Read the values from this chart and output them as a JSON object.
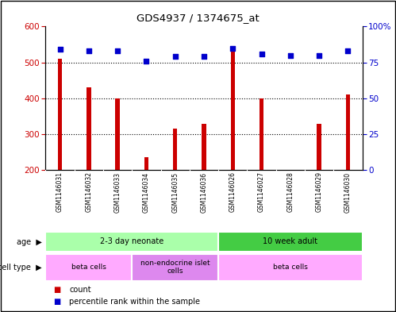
{
  "title": "GDS4937 / 1374675_at",
  "samples": [
    "GSM1146031",
    "GSM1146032",
    "GSM1146033",
    "GSM1146034",
    "GSM1146035",
    "GSM1146036",
    "GSM1146026",
    "GSM1146027",
    "GSM1146028",
    "GSM1146029",
    "GSM1146030"
  ],
  "counts": [
    510,
    430,
    400,
    235,
    315,
    328,
    530,
    400,
    200,
    328,
    410
  ],
  "percentiles": [
    84,
    83,
    83,
    76,
    79,
    79,
    85,
    81,
    80,
    80,
    83
  ],
  "ylim_left": [
    200,
    600
  ],
  "ylim_right": [
    0,
    100
  ],
  "yticks_left": [
    200,
    300,
    400,
    500,
    600
  ],
  "yticks_right": [
    0,
    25,
    50,
    75,
    100
  ],
  "bar_color": "#cc0000",
  "scatter_color": "#0000cc",
  "age_groups": [
    {
      "label": "2-3 day neonate",
      "start": 0,
      "end": 6,
      "color": "#aaffaa"
    },
    {
      "label": "10 week adult",
      "start": 6,
      "end": 11,
      "color": "#44cc44"
    }
  ],
  "cell_type_groups": [
    {
      "label": "beta cells",
      "start": 0,
      "end": 3,
      "color": "#ffaaff"
    },
    {
      "label": "non-endocrine islet\ncells",
      "start": 3,
      "end": 6,
      "color": "#dd88ee"
    },
    {
      "label": "beta cells",
      "start": 6,
      "end": 11,
      "color": "#ffaaff"
    }
  ],
  "bar_width": 0.15,
  "xlabel_color": "#cc0000",
  "right_axis_color": "#0000cc",
  "background_sample_row": "#cccccc",
  "grid_dotted_at": [
    300,
    400,
    500
  ],
  "percentile_scatter_size": 18
}
